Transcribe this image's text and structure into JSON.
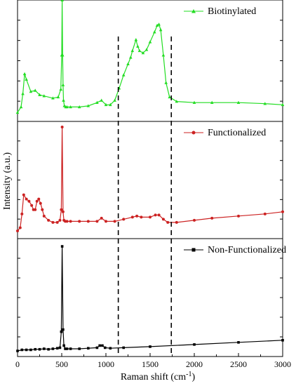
{
  "chart_data": {
    "type": "line",
    "xlabel": "Raman shift (cm",
    "xlabel_sup": "-1",
    "xlabel_close": ")",
    "ylabel": "Intensity (a.u.)",
    "xlim": [
      0,
      3000
    ],
    "xticks": [
      0,
      500,
      1000,
      1500,
      2000,
      2500,
      3000
    ],
    "reference_lines_x": [
      1140,
      1740
    ],
    "y_tick_labels_shown": false,
    "series": [
      {
        "name": "Biotinylated",
        "color": "#22dd22",
        "marker": "triangle",
        "x": [
          0,
          40,
          60,
          80,
          100,
          150,
          200,
          250,
          300,
          400,
          460,
          490,
          500,
          505,
          510,
          515,
          520,
          530,
          545,
          560,
          600,
          700,
          800,
          900,
          950,
          1000,
          1050,
          1100,
          1150,
          1200,
          1250,
          1280,
          1300,
          1340,
          1360,
          1380,
          1420,
          1460,
          1500,
          1550,
          1580,
          1600,
          1620,
          1650,
          1680,
          1720,
          1800,
          2000,
          2200,
          2500,
          2800,
          3000
        ],
        "y": [
          0.03,
          0.08,
          0.2,
          0.38,
          0.33,
          0.22,
          0.23,
          0.19,
          0.18,
          0.16,
          0.17,
          0.24,
          0.55,
          1.05,
          0.55,
          0.28,
          0.14,
          0.09,
          0.08,
          0.08,
          0.08,
          0.08,
          0.09,
          0.12,
          0.14,
          0.1,
          0.1,
          0.14,
          0.25,
          0.37,
          0.47,
          0.53,
          0.59,
          0.69,
          0.63,
          0.59,
          0.57,
          0.6,
          0.67,
          0.76,
          0.82,
          0.83,
          0.78,
          0.55,
          0.3,
          0.17,
          0.13,
          0.12,
          0.12,
          0.12,
          0.11,
          0.1
        ]
      },
      {
        "name": "Functionalized",
        "color": "#cc2222",
        "marker": "circle",
        "x": [
          0,
          30,
          50,
          70,
          100,
          130,
          160,
          180,
          200,
          220,
          240,
          260,
          280,
          300,
          350,
          400,
          450,
          480,
          495,
          505,
          515,
          525,
          540,
          560,
          600,
          700,
          800,
          900,
          950,
          1000,
          1100,
          1200,
          1300,
          1350,
          1400,
          1500,
          1560,
          1600,
          1650,
          1700,
          1800,
          2000,
          2200,
          2500,
          2800,
          3000
        ],
        "y": [
          0.02,
          0.05,
          0.18,
          0.36,
          0.32,
          0.3,
          0.26,
          0.22,
          0.22,
          0.3,
          0.32,
          0.28,
          0.22,
          0.16,
          0.12,
          0.1,
          0.1,
          0.12,
          0.22,
          1.0,
          0.2,
          0.12,
          0.11,
          0.11,
          0.11,
          0.11,
          0.11,
          0.11,
          0.14,
          0.11,
          0.11,
          0.13,
          0.15,
          0.16,
          0.15,
          0.15,
          0.17,
          0.17,
          0.13,
          0.1,
          0.1,
          0.12,
          0.14,
          0.16,
          0.18,
          0.2
        ]
      },
      {
        "name": "Non-Functionalized",
        "color": "#000000",
        "marker": "square",
        "x": [
          0,
          50,
          100,
          150,
          200,
          250,
          300,
          350,
          400,
          450,
          480,
          495,
          505,
          515,
          525,
          540,
          560,
          600,
          700,
          800,
          900,
          930,
          960,
          990,
          1050,
          1200,
          1500,
          2000,
          2500,
          3000
        ],
        "y": [
          0.0,
          0.01,
          0.01,
          0.01,
          0.015,
          0.015,
          0.02,
          0.015,
          0.02,
          0.025,
          0.03,
          0.18,
          0.98,
          0.2,
          0.05,
          0.02,
          0.02,
          0.02,
          0.02,
          0.025,
          0.03,
          0.05,
          0.05,
          0.03,
          0.025,
          0.03,
          0.04,
          0.06,
          0.08,
          0.1
        ]
      }
    ]
  }
}
